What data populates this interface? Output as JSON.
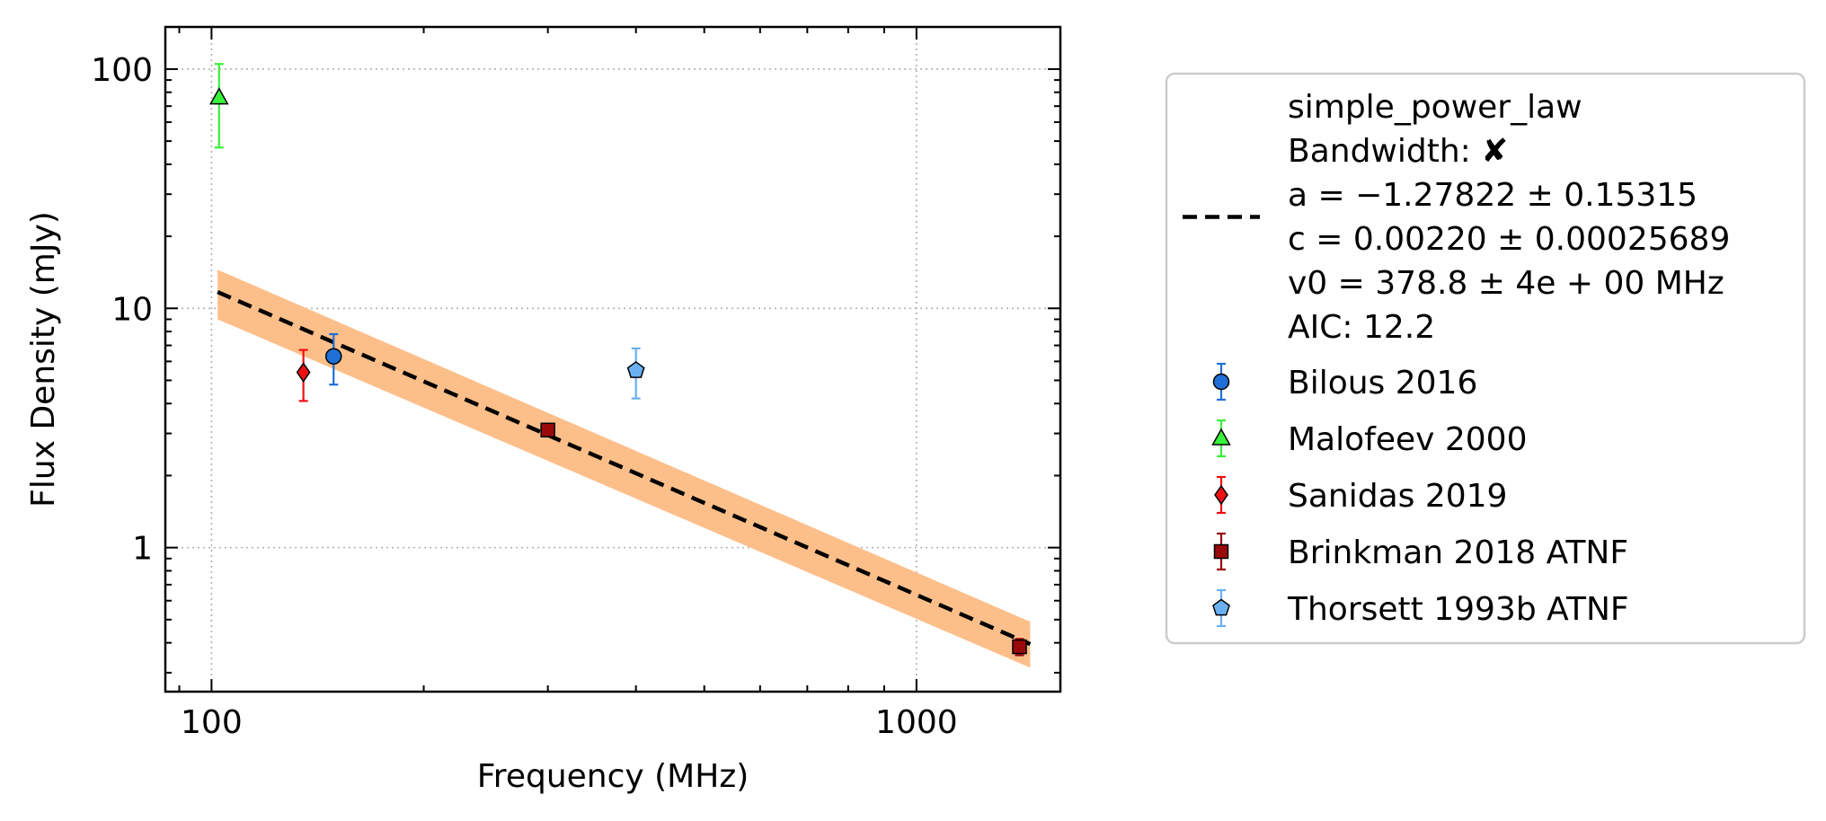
{
  "chart_data": {
    "type": "scatter",
    "title": "",
    "xlabel": "Frequency (MHz)",
    "ylabel": "Flux Density (mJy)",
    "xscale": "log",
    "yscale": "log",
    "xlim": [
      86,
      1600
    ],
    "ylim": [
      0.25,
      150
    ],
    "x_ticks": [
      {
        "value": 100,
        "label": "100"
      },
      {
        "value": 1000,
        "label": "1000"
      }
    ],
    "y_ticks": [
      {
        "value": 1,
        "label": "1"
      },
      {
        "value": 10,
        "label": "10"
      },
      {
        "value": 100,
        "label": "100"
      }
    ],
    "grid": true,
    "legend_position": "outside-right",
    "fit": {
      "model": "simple_power_law",
      "legend_lines": [
        "simple_power_law",
        "Bandwidth: ✘",
        "a = −1.27822 ± 0.15315",
        "c = 0.00220 ± 0.00025689",
        "v0 = 378.8 ± 4e + 00 MHz",
        "AIC: 12.2"
      ],
      "line": [
        [
          102,
          11.7
        ],
        [
          1450,
          0.395
        ]
      ],
      "band_upper": [
        [
          102,
          14.5
        ],
        [
          1450,
          0.49
        ]
      ],
      "band_lower": [
        [
          102,
          9.0
        ],
        [
          1450,
          0.315
        ]
      ],
      "line_color": "#000000",
      "band_color": "#fdbf8a"
    },
    "series": [
      {
        "name": "Bilous 2016",
        "marker": "circle",
        "color": "#1f6fd6",
        "points": [
          {
            "x": 149,
            "y": 6.3,
            "yerr_low": 4.8,
            "yerr_high": 7.8
          }
        ]
      },
      {
        "name": "Malofeev 2000",
        "marker": "triangle",
        "color": "#39f03a",
        "points": [
          {
            "x": 102.5,
            "y": 76,
            "yerr_low": 47,
            "yerr_high": 105
          }
        ]
      },
      {
        "name": "Sanidas 2019",
        "marker": "diamond",
        "color": "#ee1111",
        "points": [
          {
            "x": 135,
            "y": 5.4,
            "yerr_low": 4.1,
            "yerr_high": 6.7
          }
        ]
      },
      {
        "name": "Brinkman 2018 ATNF",
        "marker": "square",
        "color": "#9a0a0a",
        "points": [
          {
            "x": 300,
            "y": 3.1,
            "yerr_low": 2.95,
            "yerr_high": 3.25
          },
          {
            "x": 1400,
            "y": 0.385,
            "yerr_low": 0.355,
            "yerr_high": 0.415
          }
        ]
      },
      {
        "name": "Thorsett 1993b ATNF",
        "marker": "pentagon",
        "color": "#6ab0f3",
        "points": [
          {
            "x": 400,
            "y": 5.5,
            "yerr_low": 4.2,
            "yerr_high": 6.8
          }
        ]
      }
    ]
  }
}
